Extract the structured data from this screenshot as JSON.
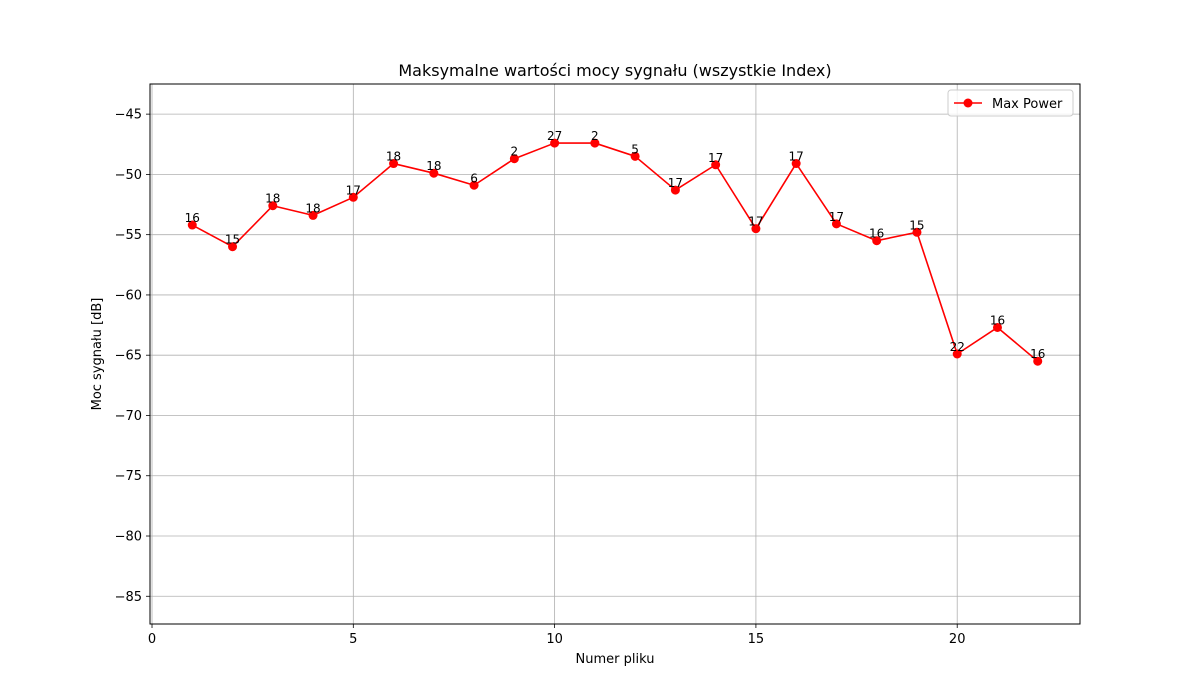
{
  "chart_data": {
    "type": "line",
    "title": "Maksymalne wartości mocy sygnału (wszystkie Index)",
    "xlabel": "Numer pliku",
    "ylabel": "Moc sygnału [dB]",
    "xlim": [
      -0.05,
      23.05
    ],
    "ylim": [
      -87.3,
      -42.5
    ],
    "xticks": [
      0,
      5,
      10,
      15,
      20
    ],
    "yticks": [
      -45,
      -50,
      -55,
      -60,
      -65,
      -70,
      -75,
      -80,
      -85
    ],
    "grid": true,
    "legend_position": "top-right",
    "series": [
      {
        "name": "Max Power",
        "color": "#ff0000",
        "marker": "circle",
        "x": [
          1,
          2,
          3,
          4,
          5,
          6,
          7,
          8,
          9,
          10,
          11,
          12,
          13,
          14,
          15,
          16,
          17,
          18,
          19,
          20,
          21,
          22
        ],
        "y": [
          -54.2,
          -56.0,
          -52.6,
          -53.4,
          -51.9,
          -49.1,
          -49.9,
          -50.9,
          -48.7,
          -47.4,
          -47.4,
          -48.5,
          -51.3,
          -49.2,
          -54.5,
          -49.1,
          -54.1,
          -55.5,
          -54.8,
          -64.9,
          -62.7,
          -65.5
        ],
        "labels": [
          "16",
          "15",
          "18",
          "18",
          "17",
          "18",
          "18",
          "6",
          "2",
          "27",
          "2",
          "5",
          "17",
          "17",
          "17",
          "17",
          "17",
          "16",
          "15",
          "22",
          "16",
          "16"
        ]
      }
    ]
  }
}
